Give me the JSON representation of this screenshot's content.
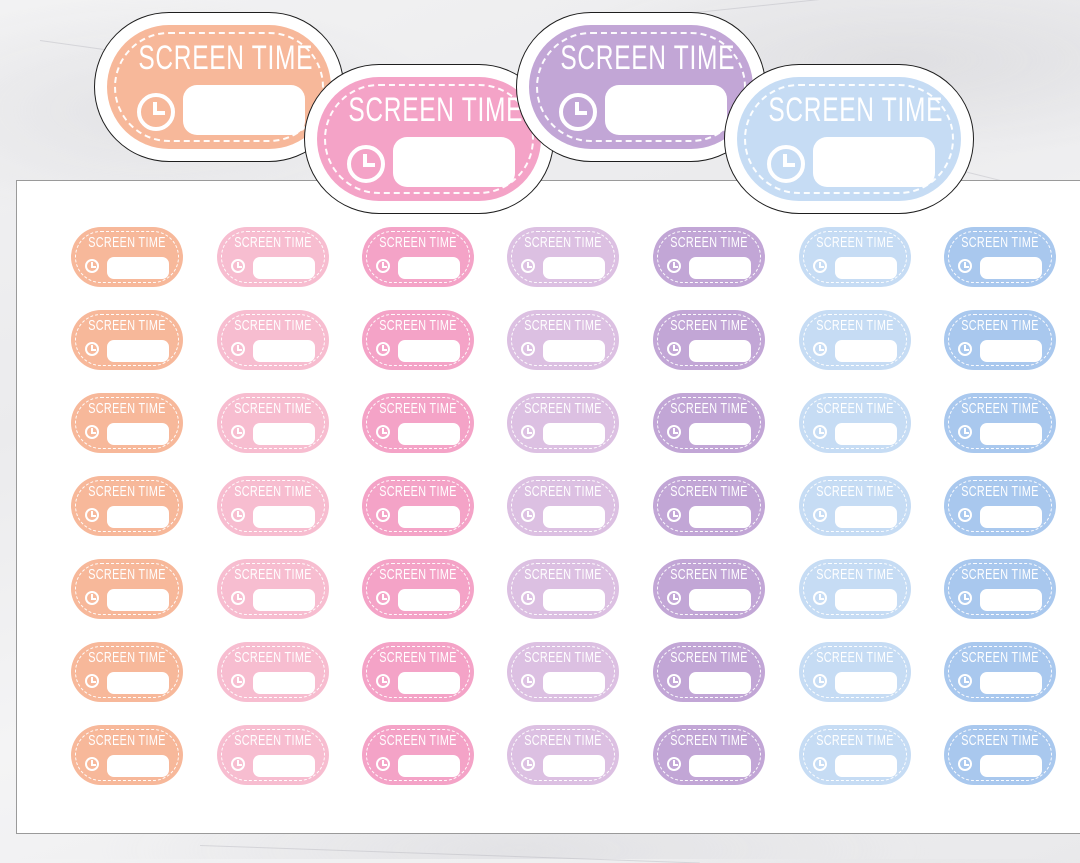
{
  "sticker_label": "SCREEN TIME",
  "colors": {
    "peach": "#f7b89a",
    "light_pink": "#f7bdd0",
    "pink": "#f4a3c7",
    "lilac": "#dcc0e2",
    "purple": "#c2a6d6",
    "light_blue": "#c6dcf4",
    "blue": "#a9c8ee"
  },
  "featured_stickers": [
    {
      "label": "SCREEN TIME",
      "color": "peach"
    },
    {
      "label": "SCREEN TIME",
      "color": "pink"
    },
    {
      "label": "SCREEN TIME",
      "color": "purple"
    },
    {
      "label": "SCREEN TIME",
      "color": "light_blue"
    }
  ],
  "sheet": {
    "rows": 7,
    "columns": [
      "peach",
      "light_pink",
      "pink",
      "lilac",
      "purple",
      "light_blue",
      "blue"
    ],
    "icon": "clock-icon"
  }
}
